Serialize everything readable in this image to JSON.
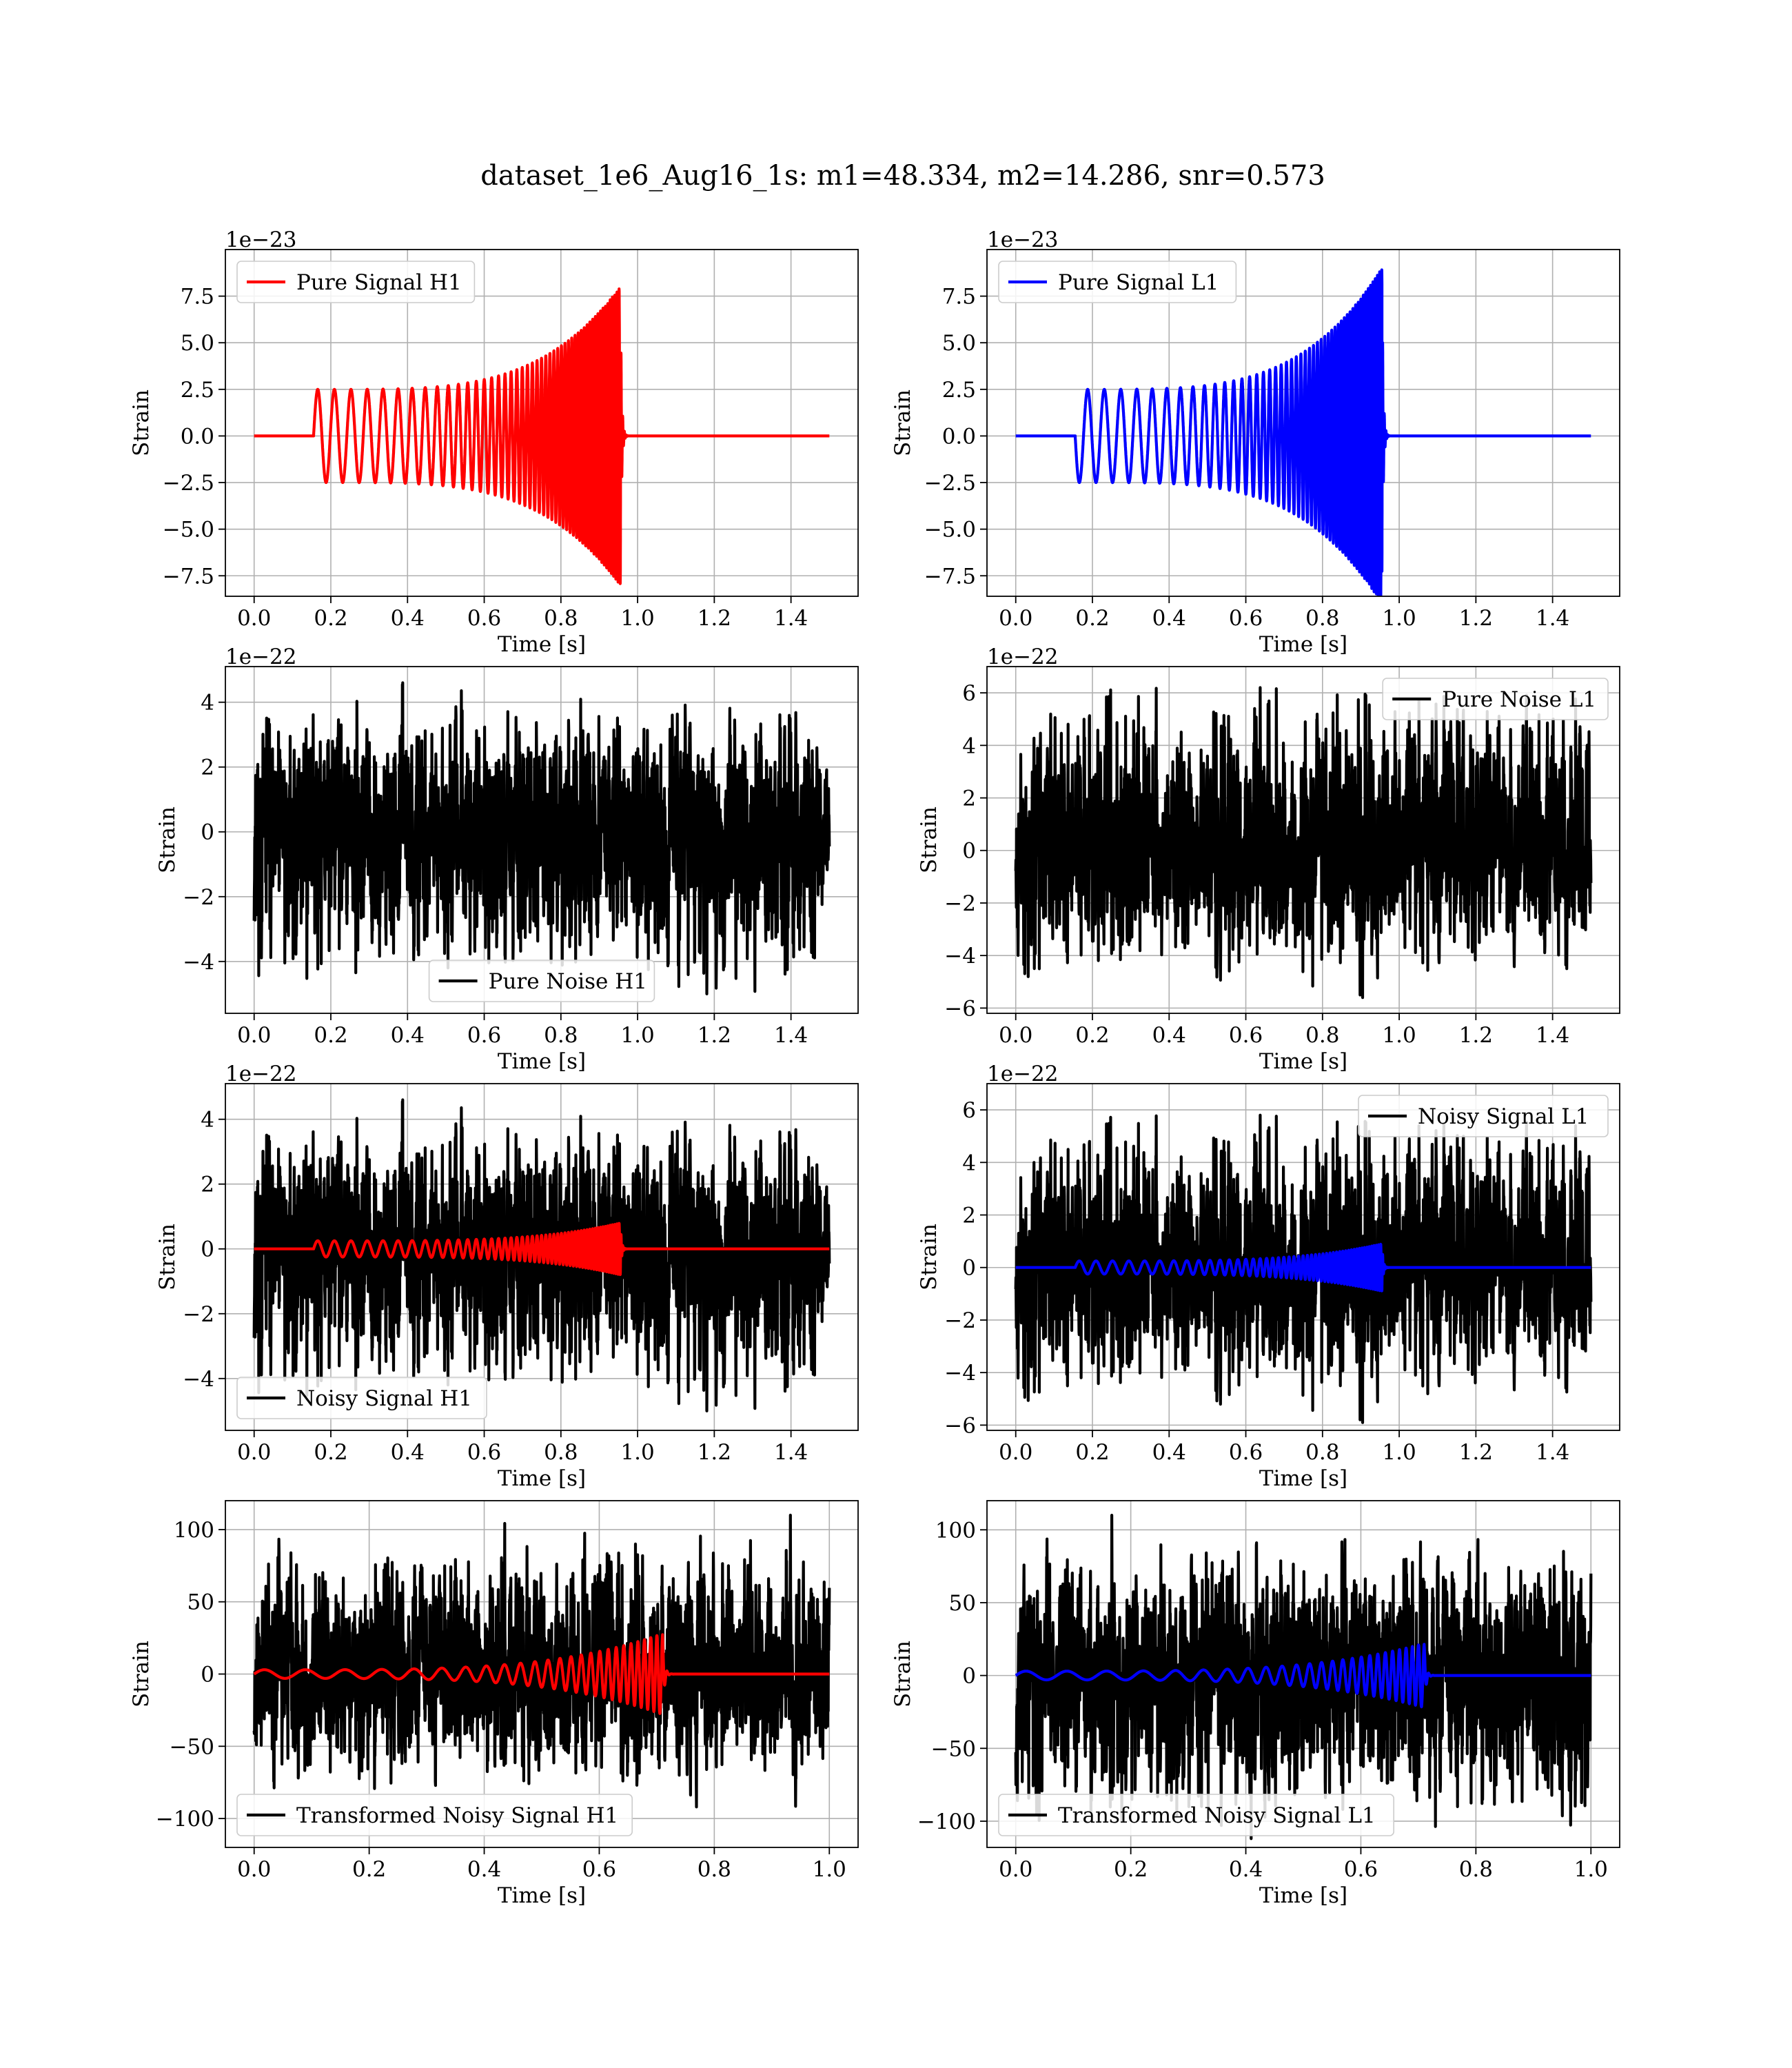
{
  "figure": {
    "title": "dataset_1e6_Aug16_1s: m1=48.334, m2=14.286, snr=0.573"
  },
  "chart_data": [
    {
      "type": "line",
      "id": "pure-signal-h1",
      "xlabel": "Time [s]",
      "ylabel": "Strain",
      "offset_text": "1e−23",
      "xlim": [
        -0.075,
        1.575
      ],
      "ylim": [
        -8.6,
        10.0
      ],
      "xticks": [
        0.0,
        0.2,
        0.4,
        0.6,
        0.8,
        1.0,
        1.2,
        1.4
      ],
      "xtick_labels": [
        "0.0",
        "0.2",
        "0.4",
        "0.6",
        "0.8",
        "1.0",
        "1.2",
        "1.4"
      ],
      "yticks": [
        -7.5,
        -5.0,
        -2.5,
        0.0,
        2.5,
        5.0,
        7.5
      ],
      "ytick_labels": [
        "−7.5",
        "−5.0",
        "−2.5",
        "0.0",
        "2.5",
        "5.0",
        "7.5"
      ],
      "grid": true,
      "legend_position": "upper-left",
      "series": [
        {
          "name": "Pure Signal H1",
          "kind": "chirp",
          "color": "#ff0000",
          "t0": 0.0,
          "t_start": 0.155,
          "t_merge": 0.955,
          "t_end": 1.5,
          "amp_start": 2.5,
          "amp_peak": 8.0,
          "f_start": 23,
          "f_end": 180,
          "y_peak_pos": 8.0,
          "y_peak_neg": -8.5,
          "noise_amp": 0
        }
      ]
    },
    {
      "type": "line",
      "id": "pure-signal-l1",
      "xlabel": "Time [s]",
      "ylabel": "Strain",
      "offset_text": "1e−23",
      "xlim": [
        -0.075,
        1.575
      ],
      "ylim": [
        -8.6,
        10.0
      ],
      "xticks": [
        0.0,
        0.2,
        0.4,
        0.6,
        0.8,
        1.0,
        1.2,
        1.4
      ],
      "xtick_labels": [
        "0.0",
        "0.2",
        "0.4",
        "0.6",
        "0.8",
        "1.0",
        "1.2",
        "1.4"
      ],
      "yticks": [
        -7.5,
        -5.0,
        -2.5,
        0.0,
        2.5,
        5.0,
        7.5
      ],
      "ytick_labels": [
        "−7.5",
        "−5.0",
        "−2.5",
        "0.0",
        "2.5",
        "5.0",
        "7.5"
      ],
      "grid": true,
      "legend_position": "upper-left",
      "series": [
        {
          "name": "Pure Signal L1",
          "kind": "chirp",
          "color": "#0000ff",
          "t0": 0.0,
          "t_start": 0.155,
          "t_merge": 0.955,
          "t_end": 1.5,
          "amp_start": 2.5,
          "amp_peak": 9.0,
          "f_start": 23,
          "f_end": 180,
          "phase_flip": true,
          "y_peak_pos": 9.0,
          "y_peak_neg": -7.8,
          "noise_amp": 0
        }
      ]
    },
    {
      "type": "line",
      "id": "pure-noise-h1",
      "xlabel": "Time [s]",
      "ylabel": "Strain",
      "offset_text": "1e−22",
      "xlim": [
        -0.075,
        1.575
      ],
      "ylim": [
        -5.6,
        5.1
      ],
      "xticks": [
        0.0,
        0.2,
        0.4,
        0.6,
        0.8,
        1.0,
        1.2,
        1.4
      ],
      "xtick_labels": [
        "0.0",
        "0.2",
        "0.4",
        "0.6",
        "0.8",
        "1.0",
        "1.2",
        "1.4"
      ],
      "yticks": [
        -4,
        -2,
        0,
        2,
        4
      ],
      "ytick_labels": [
        "−4",
        "−2",
        "0",
        "2",
        "4"
      ],
      "grid": true,
      "legend_position": "lower-center",
      "series": [
        {
          "name": "Pure Noise H1",
          "kind": "noise",
          "color": "#000000",
          "t0": 0.0,
          "t_end": 1.5,
          "noise_amp": 1.5,
          "y_max": 4.6,
          "y_min": -5.0,
          "seed": 11
        }
      ]
    },
    {
      "type": "line",
      "id": "pure-noise-l1",
      "xlabel": "Time [s]",
      "ylabel": "Strain",
      "offset_text": "1e−22",
      "xlim": [
        -0.075,
        1.575
      ],
      "ylim": [
        -6.2,
        7.0
      ],
      "xticks": [
        0.0,
        0.2,
        0.4,
        0.6,
        0.8,
        1.0,
        1.2,
        1.4
      ],
      "xtick_labels": [
        "0.0",
        "0.2",
        "0.4",
        "0.6",
        "0.8",
        "1.0",
        "1.2",
        "1.4"
      ],
      "yticks": [
        -6,
        -4,
        -2,
        0,
        2,
        4,
        6
      ],
      "ytick_labels": [
        "−6",
        "−4",
        "−2",
        "0",
        "2",
        "4",
        "6"
      ],
      "grid": true,
      "legend_position": "upper-right",
      "series": [
        {
          "name": "Pure Noise L1",
          "kind": "noise",
          "color": "#000000",
          "t0": 0.0,
          "t_end": 1.5,
          "noise_amp": 1.6,
          "y_max": 6.2,
          "y_min": -5.6,
          "seed": 23
        }
      ]
    },
    {
      "type": "line",
      "id": "noisy-signal-h1",
      "xlabel": "Time [s]",
      "ylabel": "Strain",
      "offset_text": "1e−22",
      "xlim": [
        -0.075,
        1.575
      ],
      "ylim": [
        -5.6,
        5.1
      ],
      "xticks": [
        0.0,
        0.2,
        0.4,
        0.6,
        0.8,
        1.0,
        1.2,
        1.4
      ],
      "xtick_labels": [
        "0.0",
        "0.2",
        "0.4",
        "0.6",
        "0.8",
        "1.0",
        "1.2",
        "1.4"
      ],
      "yticks": [
        -4,
        -2,
        0,
        2,
        4
      ],
      "ytick_labels": [
        "−4",
        "−2",
        "0",
        "2",
        "4"
      ],
      "grid": true,
      "legend_position": "lower-left",
      "series": [
        {
          "name": "Noisy Signal H1",
          "kind": "noise",
          "color": "#000000",
          "t0": 0.0,
          "t_end": 1.5,
          "noise_amp": 1.5,
          "y_max": 4.6,
          "y_min": -5.0,
          "seed": 11
        },
        {
          "name": "",
          "kind": "chirp",
          "color": "#ff0000",
          "t0": 0.0,
          "t_start": 0.155,
          "t_merge": 0.955,
          "t_end": 1.5,
          "amp_start": 0.25,
          "amp_peak": 0.8,
          "f_start": 23,
          "f_end": 180,
          "noise_amp": 0
        }
      ]
    },
    {
      "type": "line",
      "id": "noisy-signal-l1",
      "xlabel": "Time [s]",
      "ylabel": "Strain",
      "offset_text": "1e−22",
      "xlim": [
        -0.075,
        1.575
      ],
      "ylim": [
        -6.2,
        7.0
      ],
      "xticks": [
        0.0,
        0.2,
        0.4,
        0.6,
        0.8,
        1.0,
        1.2,
        1.4
      ],
      "xtick_labels": [
        "0.0",
        "0.2",
        "0.4",
        "0.6",
        "0.8",
        "1.0",
        "1.2",
        "1.4"
      ],
      "yticks": [
        -6,
        -4,
        -2,
        0,
        2,
        4,
        6
      ],
      "ytick_labels": [
        "−6",
        "−4",
        "−2",
        "0",
        "2",
        "4",
        "6"
      ],
      "grid": true,
      "legend_position": "upper-right",
      "series": [
        {
          "name": "Noisy Signal L1",
          "kind": "noise",
          "color": "#000000",
          "t0": 0.0,
          "t_end": 1.5,
          "noise_amp": 1.6,
          "y_max": 5.8,
          "y_min": -5.9,
          "seed": 23
        },
        {
          "name": "",
          "kind": "chirp",
          "color": "#0000ff",
          "t0": 0.0,
          "t_start": 0.155,
          "t_merge": 0.955,
          "t_end": 1.5,
          "amp_start": 0.25,
          "amp_peak": 0.9,
          "f_start": 23,
          "f_end": 180,
          "noise_amp": 0
        }
      ]
    },
    {
      "type": "line",
      "id": "transformed-noisy-signal-h1",
      "xlabel": "Time [s]",
      "ylabel": "Strain",
      "offset_text": "",
      "xlim": [
        -0.05,
        1.05
      ],
      "ylim": [
        -120,
        120
      ],
      "xticks": [
        0.0,
        0.2,
        0.4,
        0.6,
        0.8,
        1.0
      ],
      "xtick_labels": [
        "0.0",
        "0.2",
        "0.4",
        "0.6",
        "0.8",
        "1.0"
      ],
      "yticks": [
        -100,
        -50,
        0,
        50,
        100
      ],
      "ytick_labels": [
        "−100",
        "−50",
        "0",
        "50",
        "100"
      ],
      "grid": true,
      "legend_position": "lower-left",
      "series": [
        {
          "name": "Transformed Noisy Signal H1",
          "kind": "noise",
          "color": "#000000",
          "t0": 0.0,
          "t_end": 1.0,
          "noise_amp": 30,
          "y_max": 110,
          "y_min": -92,
          "seed": 37
        },
        {
          "name": "",
          "kind": "chirp",
          "color": "#ff0000",
          "t0": 0.0,
          "t_start": 0.0,
          "t_merge": 0.71,
          "t_end": 1.0,
          "amp_start": 3,
          "amp_peak": 28,
          "f_start": 14,
          "f_end": 100,
          "noise_amp": 0
        }
      ]
    },
    {
      "type": "line",
      "id": "transformed-noisy-signal-l1",
      "xlabel": "Time [s]",
      "ylabel": "Strain",
      "offset_text": "",
      "xlim": [
        -0.05,
        1.05
      ],
      "ylim": [
        -118,
        120
      ],
      "xticks": [
        0.0,
        0.2,
        0.4,
        0.6,
        0.8,
        1.0
      ],
      "xtick_labels": [
        "0.0",
        "0.2",
        "0.4",
        "0.6",
        "0.8",
        "1.0"
      ],
      "yticks": [
        -100,
        -50,
        0,
        50,
        100
      ],
      "ytick_labels": [
        "−100",
        "−50",
        "0",
        "50",
        "100"
      ],
      "grid": true,
      "legend_position": "lower-left",
      "series": [
        {
          "name": "Transformed Noisy Signal L1",
          "kind": "noise",
          "color": "#000000",
          "t0": 0.0,
          "t_end": 1.0,
          "noise_amp": 30,
          "y_max": 110,
          "y_min": -112,
          "seed": 53
        },
        {
          "name": "",
          "kind": "chirp",
          "color": "#0000ff",
          "t0": 0.0,
          "t_start": 0.0,
          "t_merge": 0.71,
          "t_end": 1.0,
          "amp_start": 3,
          "amp_peak": 22,
          "f_start": 14,
          "f_end": 100,
          "noise_amp": 0
        }
      ]
    }
  ]
}
